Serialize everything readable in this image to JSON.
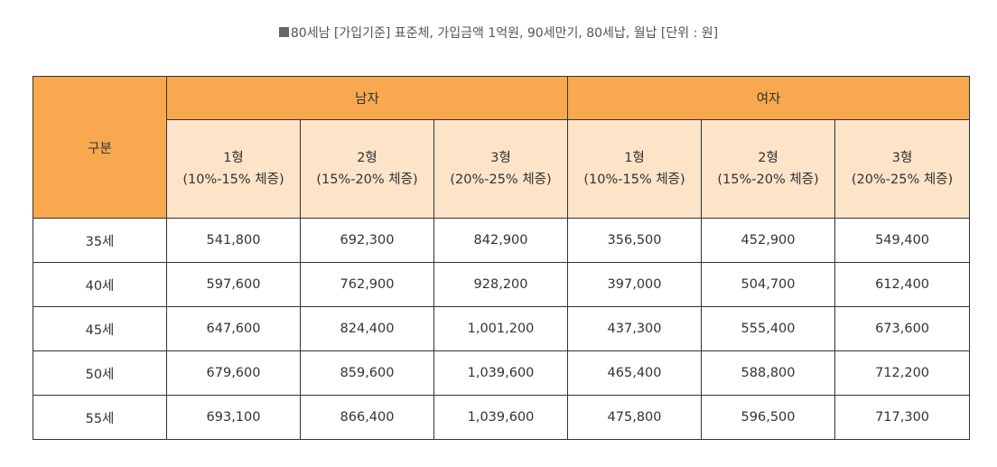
{
  "caption": "80세남 [가입기준] 표준체, 가입금액 1억원, 90세만기, 80세납, 월납 [단위 : 원]",
  "table": {
    "corner_header": "구분",
    "groups": [
      "남자",
      "여자"
    ],
    "sub_headers": [
      {
        "type": "1형",
        "range": "(10%-15% 체증)"
      },
      {
        "type": "2형",
        "range": "(15%-20% 체증)"
      },
      {
        "type": "3형",
        "range": "(20%-25% 체증)"
      },
      {
        "type": "1형",
        "range": "(10%-15% 체증)"
      },
      {
        "type": "2형",
        "range": "(15%-20% 체증)"
      },
      {
        "type": "3형",
        "range": "(20%-25% 체증)"
      }
    ],
    "rows": [
      {
        "age": "35세",
        "values": [
          "541,800",
          "692,300",
          "842,900",
          "356,500",
          "452,900",
          "549,400"
        ]
      },
      {
        "age": "40세",
        "values": [
          "597,600",
          "762,900",
          "928,200",
          "397,000",
          "504,700",
          "612,400"
        ]
      },
      {
        "age": "45세",
        "values": [
          "647,600",
          "824,400",
          "1,001,200",
          "437,300",
          "555,400",
          "673,600"
        ]
      },
      {
        "age": "50세",
        "values": [
          "679,600",
          "859,600",
          "1,039,600",
          "465,400",
          "588,800",
          "712,200"
        ]
      },
      {
        "age": "55세",
        "values": [
          "693,100",
          "866,400",
          "1,039,600",
          "475,800",
          "596,500",
          "717,300"
        ]
      }
    ]
  },
  "colors": {
    "header_orange": "#f8a84f",
    "subheader_peach": "#fde3c8",
    "border": "#333333"
  }
}
